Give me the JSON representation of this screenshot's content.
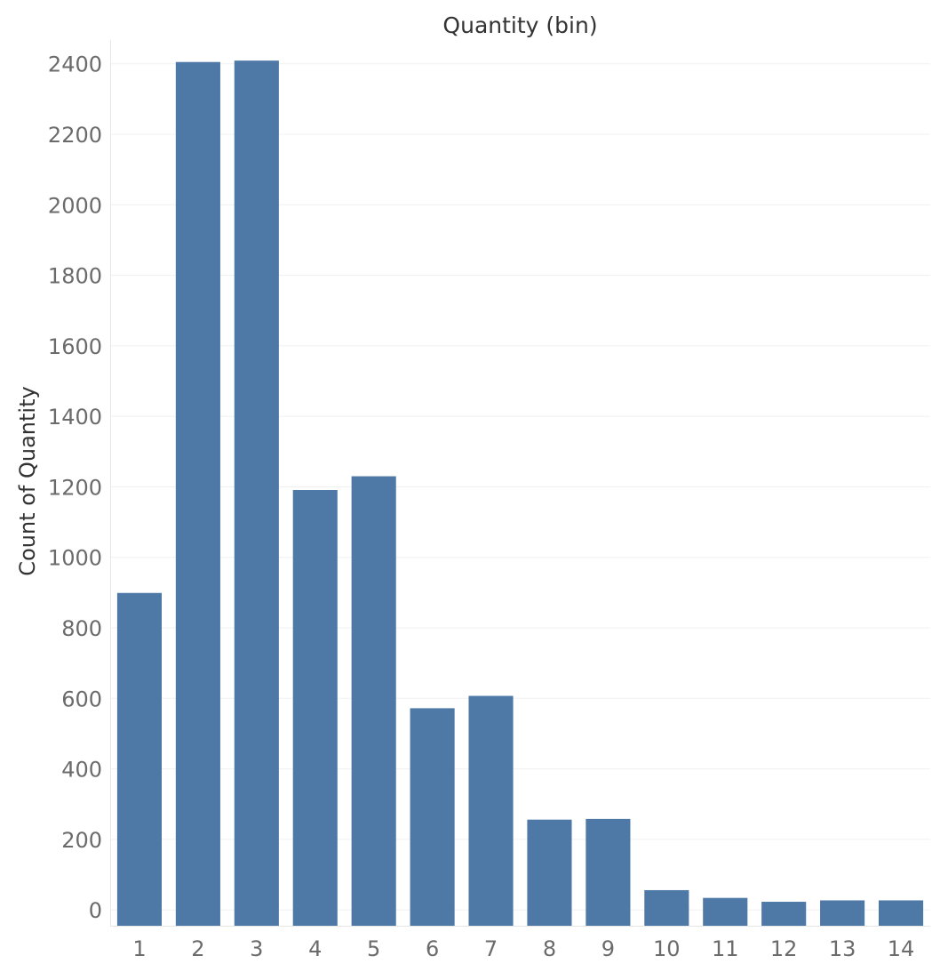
{
  "chart_data": {
    "type": "bar",
    "title": "Quantity (bin)",
    "xlabel": "",
    "ylabel": "Count of Quantity",
    "categories": [
      "1",
      "2",
      "3",
      "4",
      "5",
      "6",
      "7",
      "8",
      "9",
      "10",
      "11",
      "12",
      "13",
      "14"
    ],
    "values": [
      899,
      2405,
      2409,
      1191,
      1230,
      572,
      607,
      256,
      258,
      56,
      34,
      23,
      27,
      27
    ],
    "ylim": [
      -45,
      2480
    ],
    "yticks": [
      0,
      200,
      400,
      600,
      800,
      1000,
      1200,
      1400,
      1600,
      1800,
      2000,
      2200,
      2400
    ],
    "grid": true,
    "legend": "none",
    "colors": {
      "bar": "#4e79a7",
      "tick_label": "#6b6b6b",
      "axis_title": "#333333",
      "grid": "#f0f0f0",
      "axis_line": "#e6e6e6"
    }
  }
}
